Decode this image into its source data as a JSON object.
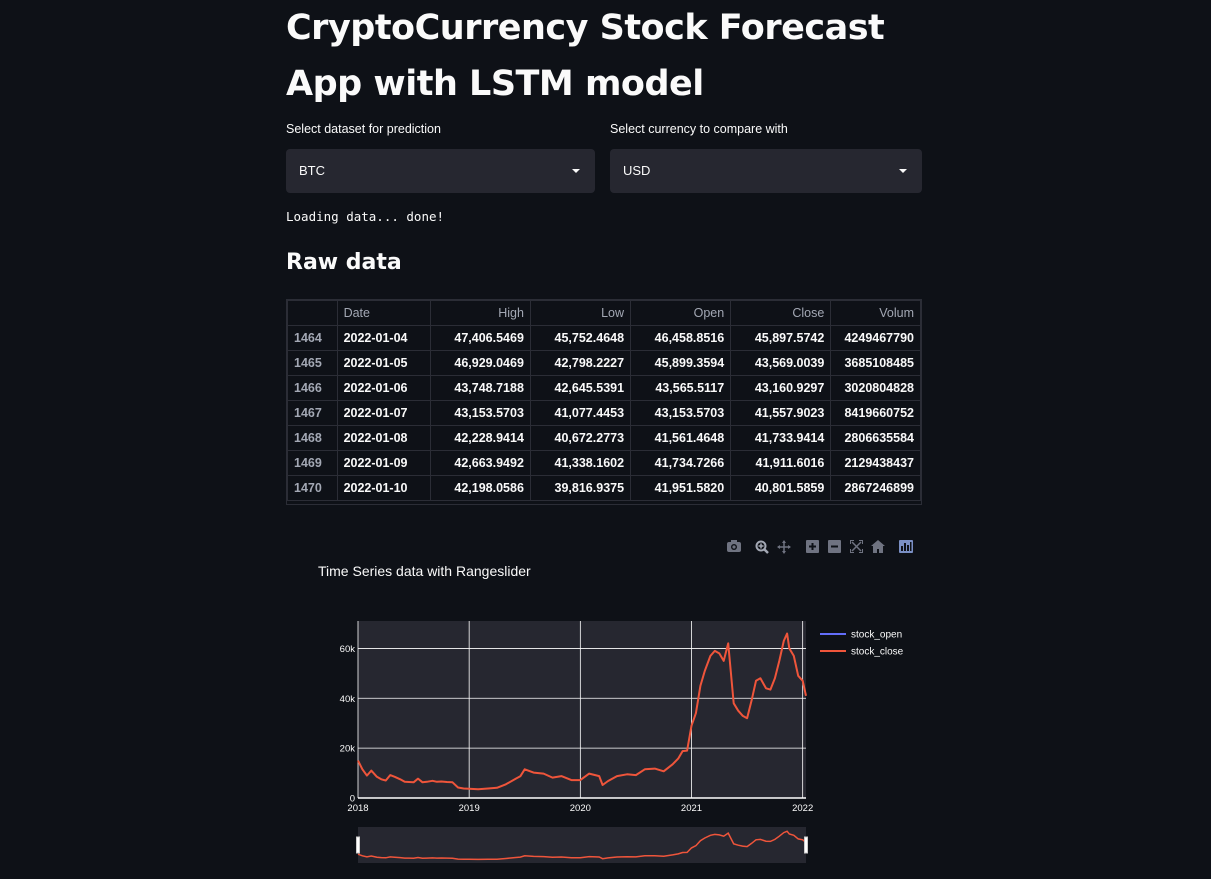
{
  "page": {
    "title": "CryptoCurrency Stock Forecast App with LSTM model",
    "loading_text": "Loading data... done!",
    "raw_data_heading": "Raw data"
  },
  "dataset_select": {
    "label": "Select dataset for prediction",
    "value": "BTC"
  },
  "currency_select": {
    "label": "Select currency to compare with",
    "value": "USD"
  },
  "table": {
    "columns": [
      "",
      "Date",
      "High",
      "Low",
      "Open",
      "Close",
      "Volum"
    ],
    "rows": [
      [
        "1464",
        "2022-01-04",
        "47,406.5469",
        "45,752.4648",
        "46,458.8516",
        "45,897.5742",
        "4249467790"
      ],
      [
        "1465",
        "2022-01-05",
        "46,929.0469",
        "42,798.2227",
        "45,899.3594",
        "43,569.0039",
        "3685108485"
      ],
      [
        "1466",
        "2022-01-06",
        "43,748.7188",
        "42,645.5391",
        "43,565.5117",
        "43,160.9297",
        "3020804828"
      ],
      [
        "1467",
        "2022-01-07",
        "43,153.5703",
        "41,077.4453",
        "43,153.5703",
        "41,557.9023",
        "8419660752"
      ],
      [
        "1468",
        "2022-01-08",
        "42,228.9414",
        "40,672.2773",
        "41,561.4648",
        "41,733.9414",
        "2806635584"
      ],
      [
        "1469",
        "2022-01-09",
        "42,663.9492",
        "41,338.1602",
        "41,734.7266",
        "41,911.6016",
        "2129438437"
      ],
      [
        "1470",
        "2022-01-10",
        "42,198.0586",
        "39,816.9375",
        "41,951.5820",
        "40,801.5859",
        "2867246899"
      ]
    ]
  },
  "toolbar": {
    "icons": [
      "camera-icon",
      "zoom-icon",
      "pan-icon",
      "zoom-in-icon",
      "zoom-out-icon",
      "autoscale-icon",
      "reset-axes-icon",
      "plotly-logo-icon"
    ]
  },
  "chart_data": {
    "type": "line",
    "title": "Time Series data with Rangeslider",
    "x_ticks": [
      "2018",
      "2019",
      "2020",
      "2021",
      "2022"
    ],
    "y_ticks": [
      "0",
      "20k",
      "40k",
      "60k"
    ],
    "ylim": [
      0,
      71000
    ],
    "xlim": [
      2018.0,
      2022.03
    ],
    "legend_position": "top-right",
    "rangeslider": true,
    "colors": {
      "stock_open": "#636efa",
      "stock_close": "#ef553b",
      "plot_bg": "#262730",
      "grid": "#ffffff"
    },
    "series": [
      {
        "name": "stock_open",
        "x": [],
        "y": []
      },
      {
        "name": "stock_close",
        "x": [
          2018.0,
          2018.04,
          2018.08,
          2018.12,
          2018.17,
          2018.21,
          2018.25,
          2018.29,
          2018.33,
          2018.38,
          2018.42,
          2018.46,
          2018.5,
          2018.54,
          2018.58,
          2018.62,
          2018.67,
          2018.71,
          2018.75,
          2018.8,
          2018.85,
          2018.9,
          2018.95,
          2019.0,
          2019.08,
          2019.17,
          2019.25,
          2019.33,
          2019.42,
          2019.46,
          2019.5,
          2019.58,
          2019.67,
          2019.75,
          2019.83,
          2019.92,
          2020.0,
          2020.08,
          2020.17,
          2020.2,
          2020.25,
          2020.33,
          2020.42,
          2020.5,
          2020.58,
          2020.67,
          2020.75,
          2020.83,
          2020.88,
          2020.92,
          2020.96,
          2021.0,
          2021.04,
          2021.08,
          2021.12,
          2021.17,
          2021.21,
          2021.25,
          2021.29,
          2021.33,
          2021.38,
          2021.42,
          2021.46,
          2021.5,
          2021.54,
          2021.58,
          2021.62,
          2021.67,
          2021.71,
          2021.75,
          2021.79,
          2021.83,
          2021.86,
          2021.88,
          2021.92,
          2021.96,
          2022.0,
          2022.03
        ],
        "y": [
          15000,
          11500,
          9000,
          11000,
          8500,
          7500,
          7000,
          9200,
          8500,
          7500,
          6500,
          6400,
          6300,
          7800,
          6300,
          6500,
          6900,
          6500,
          6600,
          6400,
          6300,
          4200,
          3800,
          3700,
          3500,
          3800,
          4100,
          5500,
          7800,
          8700,
          11500,
          10200,
          9800,
          8200,
          8800,
          7200,
          7200,
          9800,
          8800,
          5200,
          6800,
          8800,
          9500,
          9200,
          11500,
          11800,
          10700,
          13500,
          15800,
          18800,
          19000,
          29000,
          34000,
          45000,
          51000,
          57000,
          59000,
          58000,
          55000,
          62000,
          38000,
          35000,
          33000,
          32000,
          39000,
          47000,
          48000,
          44000,
          43500,
          48000,
          55000,
          63000,
          66000,
          60000,
          57000,
          49000,
          47000,
          41000
        ]
      }
    ]
  }
}
